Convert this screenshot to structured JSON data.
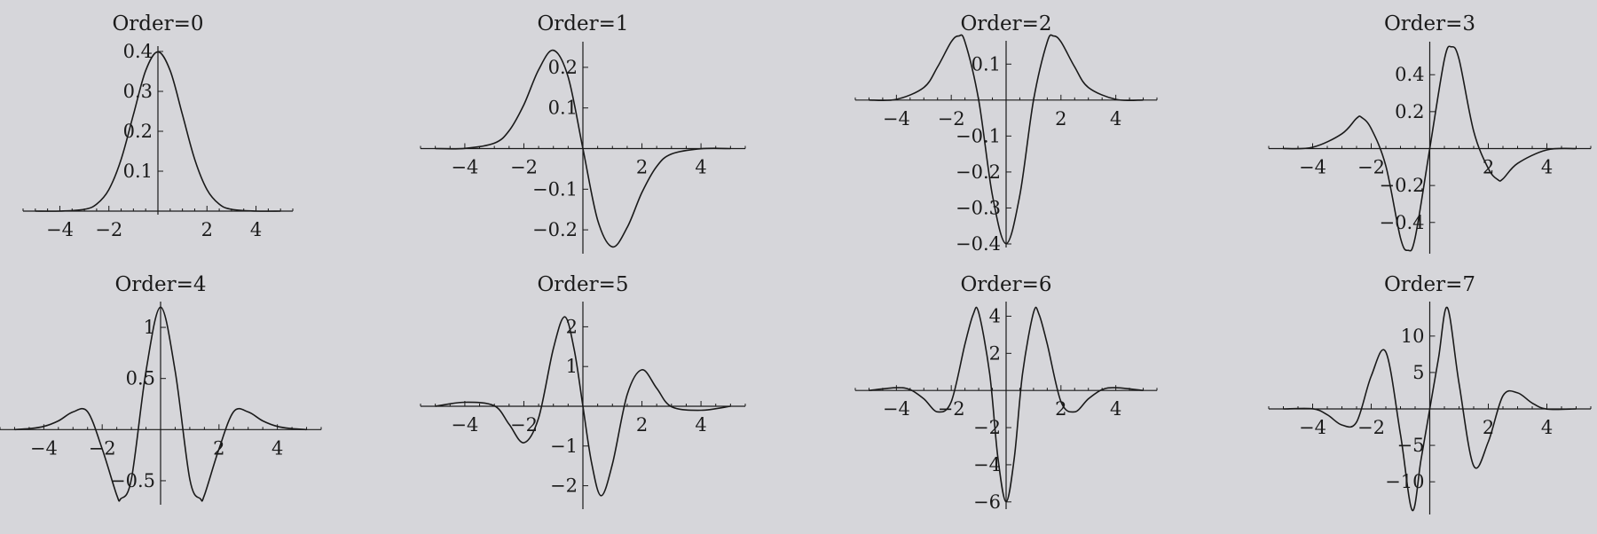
{
  "background": "#d6d6da",
  "line_color": "#1a1a1a",
  "chart_data": [
    {
      "type": "line",
      "title": "Order=0",
      "xlim": [
        -5.5,
        5.5
      ],
      "ylim": [
        0,
        0.4
      ],
      "xticks": [
        -4,
        -2,
        2,
        4
      ],
      "yticks": [
        0.1,
        0.2,
        0.3,
        0.4
      ],
      "series": [
        {
          "x": [
            -5,
            -4,
            -3,
            -2.5,
            -2,
            -1.5,
            -1,
            -0.5,
            0,
            0.5,
            1,
            1.5,
            2,
            2.5,
            3,
            4,
            5
          ],
          "y": [
            0,
            0.0001,
            0.0044,
            0.0175,
            0.054,
            0.1295,
            0.242,
            0.352,
            0.399,
            0.352,
            0.242,
            0.1295,
            0.054,
            0.0175,
            0.0044,
            0.0001,
            0
          ]
        }
      ]
    },
    {
      "type": "line",
      "title": "Order=1",
      "xlim": [
        -5.5,
        5.5
      ],
      "ylim": [
        -0.25,
        0.25
      ],
      "xticks": [
        -4,
        -2,
        2,
        4
      ],
      "yticks": [
        -0.2,
        -0.1,
        0.1,
        0.2
      ],
      "series": [
        {
          "x": [
            -5,
            -4,
            -3,
            -2.5,
            -2,
            -1.5,
            -1,
            -0.5,
            0,
            0.5,
            1,
            1.5,
            2,
            2.5,
            3,
            4,
            5
          ],
          "y": [
            0,
            0.0005,
            0.0133,
            0.0438,
            0.108,
            0.194,
            0.242,
            0.176,
            0,
            -0.176,
            -0.242,
            -0.194,
            -0.108,
            -0.0438,
            -0.0133,
            -0.0005,
            0
          ]
        }
      ]
    },
    {
      "type": "line",
      "title": "Order=2",
      "xlim": [
        -5.5,
        5.5
      ],
      "ylim": [
        -0.4,
        0.15
      ],
      "xticks": [
        -4,
        -2,
        2,
        4
      ],
      "yticks": [
        -0.4,
        -0.3,
        -0.2,
        -0.1,
        0.1
      ],
      "series": [
        {
          "x": [
            -5,
            -4,
            -3,
            -2.5,
            -2,
            -1.73,
            -1.5,
            -1,
            -0.5,
            0,
            0.5,
            1,
            1.5,
            1.73,
            2,
            2.5,
            3,
            4,
            5
          ],
          "y": [
            0,
            0.002,
            0.035,
            0.092,
            0.162,
            0.178,
            0.162,
            0,
            -0.264,
            -0.399,
            -0.264,
            0,
            0.162,
            0.178,
            0.162,
            0.092,
            0.035,
            0.002,
            0
          ]
        }
      ]
    },
    {
      "type": "line",
      "title": "Order=3",
      "xlim": [
        -5.5,
        5.5
      ],
      "ylim": [
        -0.55,
        0.55
      ],
      "xticks": [
        -4,
        -2,
        2,
        4
      ],
      "yticks": [
        -0.4,
        -0.2,
        0.2,
        0.4
      ],
      "series": [
        {
          "x": [
            -5,
            -4,
            -3,
            -2.5,
            -2.33,
            -2,
            -1.5,
            -1,
            -0.74,
            -0.5,
            0,
            0.5,
            0.74,
            1,
            1.5,
            2,
            2.33,
            2.5,
            3,
            4,
            5
          ],
          "y": [
            0,
            0.007,
            0.08,
            0.164,
            0.169,
            0.108,
            -0.094,
            -0.484,
            -0.551,
            -0.483,
            0,
            0.483,
            0.551,
            0.484,
            0.094,
            -0.108,
            -0.169,
            -0.164,
            -0.08,
            -0.007,
            0
          ]
        }
      ]
    },
    {
      "type": "line",
      "title": "Order=4",
      "xlim": [
        -5.5,
        5.5
      ],
      "ylim": [
        -0.7,
        1.2
      ],
      "xticks": [
        -4,
        -2,
        2,
        4
      ],
      "yticks": [
        -0.5,
        0.5,
        1
      ],
      "series": [
        {
          "x": [
            -5,
            -4.5,
            -4,
            -3.5,
            -3,
            -2.5,
            -2,
            -1.5,
            -1.36,
            -1,
            -0.5,
            0,
            0.5,
            1,
            1.36,
            1.5,
            2,
            2.5,
            3,
            3.5,
            4,
            4.5,
            5
          ],
          "y": [
            0,
            0.01,
            0.031,
            0.085,
            0.173,
            0.175,
            -0.189,
            -0.641,
            -0.676,
            -0.484,
            0.568,
            1.197,
            0.568,
            -0.484,
            -0.676,
            -0.641,
            -0.189,
            0.175,
            0.173,
            0.085,
            0.031,
            0.01,
            0
          ]
        }
      ]
    },
    {
      "type": "line",
      "title": "Order=5",
      "xlim": [
        -5.5,
        5.5
      ],
      "ylim": [
        -2.5,
        2.5
      ],
      "xticks": [
        -4,
        -2,
        2,
        4
      ],
      "yticks": [
        -2,
        -1,
        1,
        2
      ],
      "series": [
        {
          "x": [
            -5,
            -4,
            -3,
            -2.5,
            -2,
            -1.5,
            -1,
            -0.62,
            -0.3,
            0,
            0.3,
            0.62,
            1,
            1.5,
            2,
            2.5,
            3,
            4,
            5
          ],
          "y": [
            0,
            0.1,
            0.011,
            -0.454,
            -0.918,
            -0.292,
            1.452,
            2.25,
            1.446,
            0,
            -1.446,
            -2.25,
            -1.452,
            0.292,
            0.918,
            0.454,
            -0.011,
            -0.1,
            0
          ]
        }
      ]
    },
    {
      "type": "line",
      "title": "Order=6",
      "xlim": [
        -5.5,
        5.5
      ],
      "ylim": [
        -6.2,
        4.5
      ],
      "xticks": [
        -4,
        -2,
        2,
        4
      ],
      "yticks": [
        -6,
        -4,
        -2,
        2,
        4
      ],
      "series": [
        {
          "x": [
            -5,
            -4,
            -3.5,
            -3,
            -2.5,
            -2,
            -1.5,
            -1.2,
            -1,
            -0.6,
            -0.3,
            0,
            0.3,
            0.6,
            1,
            1.2,
            1.5,
            2,
            2.5,
            3,
            3.5,
            4,
            5
          ],
          "y": [
            0,
            0.15,
            0.05,
            -0.45,
            -1.15,
            -0.6,
            2.5,
            4.1,
            4.2,
            0.9,
            -3.6,
            -5.99,
            -3.6,
            0.9,
            4.2,
            4.1,
            2.5,
            -0.6,
            -1.15,
            -0.45,
            0.05,
            0.15,
            0
          ]
        }
      ]
    },
    {
      "type": "line",
      "title": "Order=7",
      "xlim": [
        -5.5,
        5.5
      ],
      "ylim": [
        -14,
        14
      ],
      "xticks": [
        -4,
        -2,
        2,
        4
      ],
      "yticks": [
        -10,
        -5,
        5,
        10
      ],
      "series": [
        {
          "x": [
            -5,
            -4,
            -3.5,
            -3,
            -2.5,
            -2,
            -1.5,
            -1,
            -0.6,
            -0.3,
            0,
            0.3,
            0.6,
            1,
            1.5,
            2,
            2.5,
            3,
            3.5,
            4,
            5
          ],
          "y": [
            0,
            0.02,
            -0.8,
            -2.2,
            -1.8,
            4.5,
            7.8,
            -3.5,
            -13.9,
            -7,
            0,
            7,
            13.9,
            3.5,
            -7.8,
            -4.5,
            1.8,
            2.2,
            0.8,
            -0.02,
            0
          ]
        }
      ]
    }
  ]
}
